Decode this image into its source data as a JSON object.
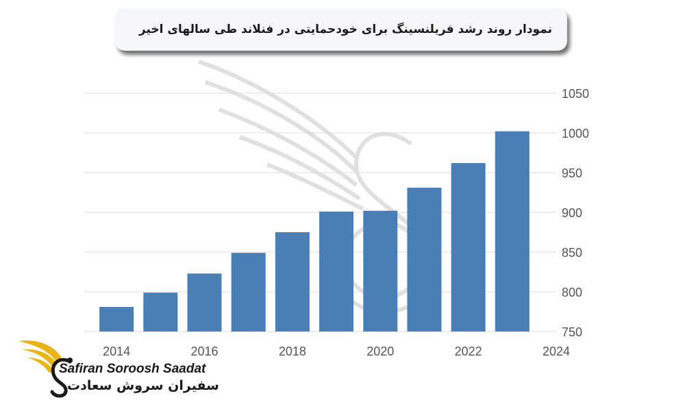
{
  "title": "نمودار روند رشد فریلنسینگ برای خودحمایتی در فنلاند طی سالهای اخیر",
  "brand": {
    "name_en": "Safiran Soroosh Saadat",
    "name_fa": "سفیران سروش سعادت"
  },
  "colors": {
    "bar": "#4a7fb5",
    "grid": "#dcdcdc",
    "title_bg": "#f4f6f9",
    "logo_gold": "#e8b417"
  },
  "chart_data": {
    "type": "bar",
    "x": [
      2014,
      2015,
      2016,
      2017,
      2018,
      2019,
      2020,
      2021,
      2022,
      2023
    ],
    "values": [
      781,
      799,
      823,
      849,
      875,
      901,
      902,
      931,
      962,
      1002
    ],
    "x_ticks": [
      "2014",
      "2016",
      "2018",
      "2020",
      "2022",
      "2024"
    ],
    "y_ticks": [
      "750",
      "800",
      "850",
      "900",
      "950",
      "1000",
      "1050"
    ],
    "xlim": [
      2013.25,
      2024
    ],
    "ylim": [
      750,
      1050
    ],
    "y_axis_side": "right",
    "grid": true,
    "legend": "none"
  }
}
